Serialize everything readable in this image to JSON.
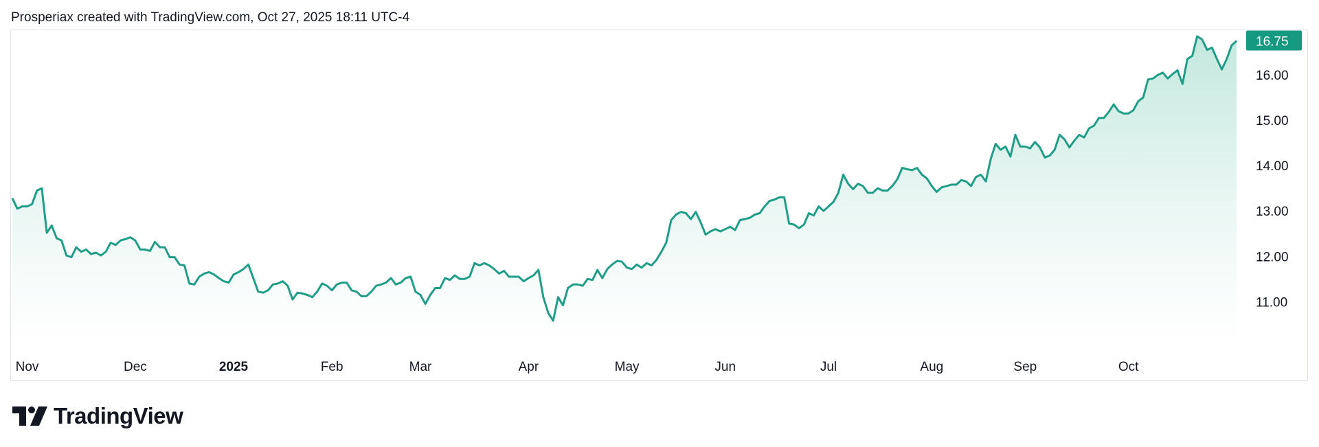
{
  "header": {
    "text": "Prosperiax created with TradingView.com, Oct 27, 2025 18:11 UTC-4"
  },
  "logo": {
    "icon": "tradingview-logo-icon",
    "text": "TradingView"
  },
  "colors": {
    "line": "#1f9e87",
    "area_top": "#bfe6dc",
    "area_bottom": "#ffffff",
    "price_tag": "#159980",
    "border": "#e0e3eb",
    "text": "#131722"
  },
  "chart_data": {
    "type": "area",
    "title": "",
    "xlabel": "",
    "ylabel": "",
    "ylim": [
      10.4,
      17.0
    ],
    "y_ticks": [
      "11.00",
      "12.00",
      "13.00",
      "14.00",
      "15.00",
      "16.00"
    ],
    "x_ticks": [
      {
        "label": "Nov",
        "index": 3,
        "bold": false
      },
      {
        "label": "Dec",
        "index": 25,
        "bold": false
      },
      {
        "label": "2025",
        "index": 45,
        "bold": true
      },
      {
        "label": "Feb",
        "index": 65,
        "bold": false
      },
      {
        "label": "Mar",
        "index": 83,
        "bold": false
      },
      {
        "label": "Apr",
        "index": 105,
        "bold": false
      },
      {
        "label": "May",
        "index": 125,
        "bold": false
      },
      {
        "label": "Jun",
        "index": 145,
        "bold": false
      },
      {
        "label": "Jul",
        "index": 166,
        "bold": false
      },
      {
        "label": "Aug",
        "index": 187,
        "bold": false
      },
      {
        "label": "Sep",
        "index": 206,
        "bold": false
      },
      {
        "label": "Oct",
        "index": 227,
        "bold": false
      }
    ],
    "last_price": "16.75",
    "grid": false,
    "legend": "none",
    "series": [
      {
        "values": [
          13.28,
          13.05,
          13.1,
          13.1,
          13.15,
          13.45,
          13.5,
          12.52,
          12.68,
          12.4,
          12.35,
          12.02,
          11.98,
          12.2,
          12.1,
          12.15,
          12.05,
          12.08,
          12.02,
          12.1,
          12.3,
          12.25,
          12.35,
          12.38,
          12.42,
          12.35,
          12.15,
          12.15,
          12.12,
          12.32,
          12.2,
          12.2,
          11.98,
          11.98,
          11.82,
          11.8,
          11.4,
          11.38,
          11.55,
          11.62,
          11.65,
          11.6,
          11.52,
          11.45,
          11.42,
          11.6,
          11.65,
          11.72,
          11.82,
          11.52,
          11.22,
          11.2,
          11.25,
          11.38,
          11.4,
          11.45,
          11.35,
          11.05,
          11.2,
          11.18,
          11.15,
          11.1,
          11.22,
          11.4,
          11.35,
          11.25,
          11.38,
          11.42,
          11.42,
          11.25,
          11.22,
          11.12,
          11.12,
          11.22,
          11.35,
          11.38,
          11.42,
          11.52,
          11.38,
          11.42,
          11.52,
          11.55,
          11.22,
          11.15,
          10.95,
          11.15,
          11.3,
          11.3,
          11.52,
          11.48,
          11.58,
          11.5,
          11.5,
          11.55,
          11.85,
          11.8,
          11.85,
          11.8,
          11.72,
          11.62,
          11.68,
          11.55,
          11.55,
          11.55,
          11.45,
          11.52,
          11.58,
          11.7,
          11.1,
          10.75,
          10.58,
          11.1,
          10.92,
          11.3,
          11.38,
          11.38,
          11.35,
          11.5,
          11.48,
          11.7,
          11.52,
          11.72,
          11.82,
          11.9,
          11.88,
          11.75,
          11.72,
          11.82,
          11.75,
          11.85,
          11.8,
          11.92,
          12.1,
          12.3,
          12.8,
          12.92,
          12.98,
          12.95,
          12.82,
          12.98,
          12.75,
          12.48,
          12.55,
          12.6,
          12.55,
          12.6,
          12.65,
          12.58,
          12.8,
          12.82,
          12.85,
          12.92,
          12.95,
          13.1,
          13.22,
          13.25,
          13.3,
          13.3,
          12.72,
          12.7,
          12.62,
          12.7,
          12.95,
          12.9,
          13.1,
          13.0,
          13.1,
          13.2,
          13.4,
          13.8,
          13.6,
          13.48,
          13.6,
          13.55,
          13.4,
          13.4,
          13.5,
          13.45,
          13.45,
          13.55,
          13.7,
          13.95,
          13.92,
          13.9,
          13.95,
          13.8,
          13.72,
          13.55,
          13.42,
          13.52,
          13.55,
          13.58,
          13.58,
          13.68,
          13.65,
          13.55,
          13.75,
          13.8,
          13.65,
          14.15,
          14.48,
          14.35,
          14.42,
          14.2,
          14.68,
          14.42,
          14.42,
          14.38,
          14.52,
          14.4,
          14.18,
          14.22,
          14.35,
          14.68,
          14.58,
          14.4,
          14.55,
          14.68,
          14.62,
          14.82,
          14.88,
          15.05,
          15.05,
          15.18,
          15.35,
          15.2,
          15.15,
          15.15,
          15.22,
          15.42,
          15.5,
          15.9,
          15.92,
          16.0,
          16.05,
          15.92,
          16.02,
          16.1,
          15.8,
          16.35,
          16.42,
          16.85,
          16.78,
          16.55,
          16.6,
          16.35,
          16.12,
          16.35,
          16.65,
          16.75
        ]
      }
    ]
  }
}
